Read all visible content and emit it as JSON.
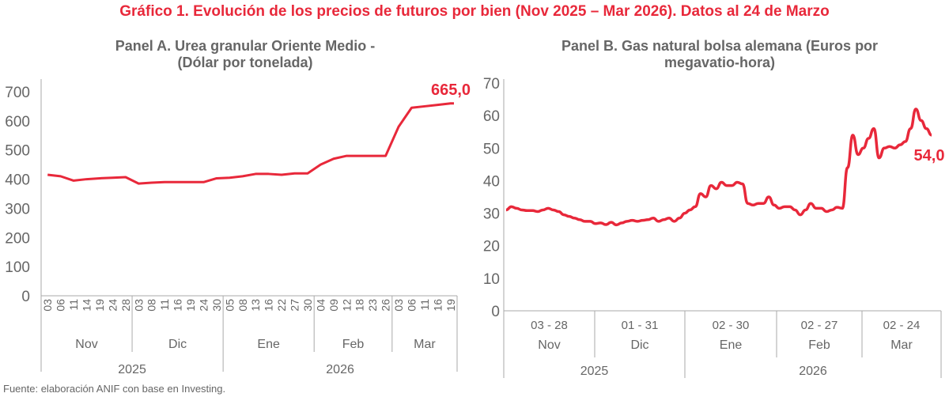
{
  "title": "Gráfico 1. Evolución de los precios de futuros por bien (Nov 2025 – Mar 2026). Datos al 24 de Marzo",
  "source": "Fuente: elaboración ANIF con base en Investing.",
  "colors": {
    "line": "#e8283a",
    "axis": "#aaaaaa",
    "text": "#666666"
  },
  "chart_data": [
    {
      "type": "line",
      "title_line1": "Panel A. Urea granular Oriente Medio -",
      "title_line2": "(Dólar por tonelada)",
      "ylim": [
        0,
        700
      ],
      "yticks": [
        "0",
        "100",
        "200",
        "300",
        "400",
        "500",
        "600",
        "700"
      ],
      "months": [
        {
          "label": "Nov",
          "days": [
            "03",
            "06",
            "11",
            "14",
            "19",
            "24",
            "28"
          ]
        },
        {
          "label": "Dic",
          "days": [
            "03",
            "08",
            "11",
            "16",
            "19",
            "24",
            "30"
          ]
        },
        {
          "label": "Ene",
          "days": [
            "05",
            "08",
            "13",
            "16",
            "22",
            "27",
            "30"
          ]
        },
        {
          "label": "Feb",
          "days": [
            "04",
            "09",
            "12",
            "18",
            "23",
            "26"
          ]
        },
        {
          "label": "Mar",
          "days": [
            "03",
            "06",
            "11",
            "16",
            "19"
          ]
        }
      ],
      "years": [
        {
          "label": "2025",
          "months": 2
        },
        {
          "label": "2026",
          "months": 3
        }
      ],
      "values": [
        415,
        410,
        395,
        400,
        403,
        405,
        407,
        385,
        388,
        390,
        390,
        390,
        390,
        403,
        405,
        410,
        418,
        418,
        415,
        420,
        420,
        450,
        470,
        480,
        480,
        480,
        480,
        580,
        645,
        650,
        655,
        660
      ],
      "last_value": 665,
      "end_label": "665,0"
    },
    {
      "type": "line",
      "title_line1": "Panel B. Gas natural bolsa alemana (Euros por",
      "title_line2": "megavatio-hora)",
      "ylim": [
        0,
        70
      ],
      "yticks": [
        "0",
        "10",
        "20",
        "30",
        "40",
        "50",
        "60",
        "70"
      ],
      "months": [
        {
          "label": "Nov",
          "range": "03 - 28"
        },
        {
          "label": "Dic",
          "range": "01 - 31"
        },
        {
          "label": "Ene",
          "range": "02 - 30"
        },
        {
          "label": "Feb",
          "range": "02 - 27"
        },
        {
          "label": "Mar",
          "range": "02 - 24"
        }
      ],
      "years": [
        {
          "label": "2025",
          "months": 2
        },
        {
          "label": "2026",
          "months": 3
        }
      ],
      "values": [
        31,
        32,
        31.5,
        31,
        30.8,
        30.8,
        30.5,
        31,
        31.5,
        31,
        30.5,
        29.5,
        29,
        28.5,
        28,
        27.5,
        27.5,
        26.8,
        27,
        26.5,
        27.2,
        26.4,
        27,
        27.5,
        27.8,
        27.5,
        27.8,
        28,
        28.5,
        27.5,
        28,
        28.5,
        27.5,
        28.5,
        30,
        31,
        32,
        36,
        35,
        38.5,
        37.5,
        39.5,
        38.5,
        38.5,
        39.5,
        39,
        33,
        32.5,
        33,
        33,
        35,
        32.5,
        31.5,
        32,
        32,
        31,
        29.5,
        31,
        33,
        31.5,
        31.5,
        30.5,
        31,
        31.8,
        31.5,
        44,
        54,
        48,
        50,
        53,
        56,
        47,
        50,
        50.5,
        50,
        51,
        52,
        56,
        62,
        58.5,
        56,
        54
      ],
      "end_label": "54,0"
    }
  ]
}
